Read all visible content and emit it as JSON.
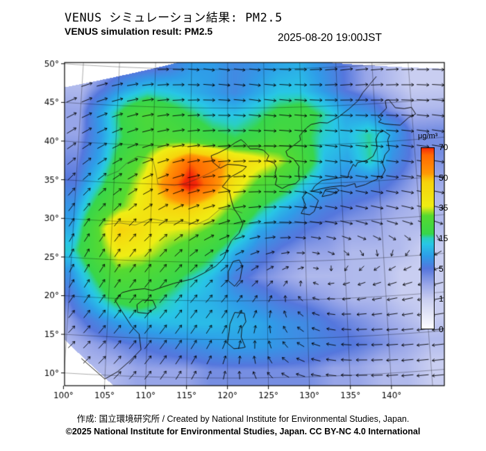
{
  "header": {
    "title_jp": "VENUS シミュレーション結果: PM2.5",
    "title_en": "VENUS simulation result: PM2.5",
    "timestamp": "2025-08-20 19:00JST"
  },
  "colorbar": {
    "unit": "μg/m³",
    "ticks": [
      "70",
      "50",
      "35",
      "15",
      "5",
      "1",
      "0"
    ]
  },
  "footer": {
    "credit": "作成: 国立環境研究所 / Created by National Institute for Environmental Studies, Japan.",
    "copyright": "©2025 National Institute for Environmental Studies, Japan. CC BY-NC 4.0 International"
  },
  "chart_data": {
    "type": "heatmap",
    "title": "VENUS simulation result: PM2.5",
    "units": "μg/m³",
    "projection": "lambert-conformal-approx",
    "lon_range": [
      100,
      145
    ],
    "lat_range": [
      10,
      50
    ],
    "lon_ticks": [
      "100°",
      "105°",
      "110°",
      "115°",
      "120°",
      "125°",
      "130°",
      "135°",
      "140°"
    ],
    "lon_tick_values": [
      100,
      105,
      110,
      115,
      120,
      125,
      130,
      135,
      140
    ],
    "lat_ticks": [
      "50°",
      "45°",
      "40°",
      "35°",
      "30°",
      "25°",
      "20°",
      "15°",
      "10°"
    ],
    "lat_tick_values": [
      50,
      45,
      40,
      35,
      30,
      25,
      20,
      15,
      10
    ],
    "colorbar_values": [
      0,
      1,
      5,
      15,
      35,
      50,
      70
    ],
    "color_stops": [
      [
        0,
        "#ffffff"
      ],
      [
        1,
        "#c9cef1"
      ],
      [
        3,
        "#97a5e8"
      ],
      [
        5,
        "#5577dd"
      ],
      [
        9,
        "#2f9ce8"
      ],
      [
        13,
        "#28c6e6"
      ],
      [
        15,
        "#29cfc4"
      ],
      [
        18,
        "#38d64a"
      ],
      [
        30,
        "#56da31"
      ],
      [
        33,
        "#a5e321"
      ],
      [
        36,
        "#efee14"
      ],
      [
        48,
        "#f7d30c"
      ],
      [
        53,
        "#ff9806"
      ],
      [
        65,
        "#ff6a02"
      ],
      [
        70,
        "#f52808"
      ],
      [
        85,
        "#cc0000"
      ]
    ],
    "domain_polygon": [
      [
        97.0,
        46.8
      ],
      [
        119,
        52.3
      ],
      [
        153,
        48.5
      ],
      [
        147,
        5.5
      ],
      [
        108,
        7
      ],
      [
        97.3,
        16.5
      ]
    ],
    "grid": {
      "lon_start": 100,
      "lon_step": 3,
      "lat_start": 50,
      "lat_step": -3,
      "values": [
        [
          2,
          2,
          3,
          4,
          6,
          9,
          9,
          7,
          8,
          10,
          11,
          8,
          5,
          3,
          2,
          1
        ],
        [
          2,
          5,
          10,
          14,
          13,
          11,
          9,
          7,
          10,
          13,
          13,
          9,
          5,
          3,
          2,
          1
        ],
        [
          3,
          10,
          20,
          26,
          22,
          18,
          14,
          13,
          16,
          20,
          22,
          16,
          10,
          8,
          4,
          2
        ],
        [
          3,
          9,
          18,
          24,
          26,
          24,
          20,
          18,
          20,
          24,
          20,
          14,
          12,
          16,
          10,
          4
        ],
        [
          4,
          10,
          22,
          32,
          48,
          65,
          58,
          46,
          40,
          34,
          24,
          12,
          10,
          16,
          8,
          4
        ],
        [
          5,
          14,
          26,
          38,
          58,
          75,
          60,
          40,
          28,
          22,
          14,
          9,
          7,
          7,
          5,
          3
        ],
        [
          8,
          20,
          30,
          40,
          46,
          48,
          40,
          28,
          18,
          12,
          8,
          6,
          5,
          4,
          3,
          2
        ],
        [
          10,
          28,
          48,
          42,
          36,
          34,
          28,
          18,
          10,
          7,
          5,
          4,
          3,
          3,
          2,
          2
        ],
        [
          14,
          26,
          38,
          36,
          30,
          24,
          18,
          10,
          6,
          4,
          3,
          3,
          2,
          2,
          2,
          1
        ],
        [
          8,
          18,
          28,
          26,
          22,
          16,
          12,
          6,
          4,
          3,
          2,
          2,
          2,
          2,
          1,
          1
        ],
        [
          5,
          12,
          20,
          22,
          16,
          12,
          11,
          9,
          7,
          5,
          4,
          3,
          2,
          2,
          1,
          1
        ],
        [
          3,
          6,
          9,
          11,
          12,
          12,
          12,
          11,
          10,
          8,
          7,
          5,
          4,
          3,
          2,
          1
        ],
        [
          2,
          3,
          4,
          5,
          6,
          7,
          8,
          9,
          9,
          8,
          7,
          6,
          5,
          4,
          3,
          2
        ],
        [
          1,
          2,
          2,
          3,
          3,
          3,
          4,
          4,
          4,
          4,
          4,
          3,
          3,
          2,
          2,
          1
        ]
      ]
    },
    "wind": {
      "lon_start": 100,
      "lon_step": 6,
      "lat_start": 50,
      "lat_step": -5,
      "u": [
        [
          2.0,
          2.0,
          2.0,
          2.0,
          2.0,
          2.2,
          2.4,
          2.4,
          2.2
        ],
        [
          1.8,
          2.0,
          2.2,
          2.2,
          2.2,
          2.4,
          2.6,
          2.6,
          2.4
        ],
        [
          1.5,
          1.8,
          2.2,
          2.5,
          2.5,
          2.6,
          2.8,
          2.8,
          2.6
        ],
        [
          1.2,
          1.5,
          2.0,
          2.5,
          2.8,
          2.8,
          2.8,
          2.8,
          2.6
        ],
        [
          0.8,
          1.0,
          1.5,
          2.0,
          2.2,
          2.4,
          2.4,
          2.2,
          2.0
        ],
        [
          0.6,
          0.8,
          1.0,
          1.2,
          1.0,
          0.5,
          0.0,
          -0.5,
          -1.0
        ],
        [
          0.8,
          1.0,
          1.2,
          1.0,
          0.5,
          -0.5,
          -1.2,
          -1.8,
          -2.0
        ],
        [
          1.0,
          1.2,
          1.2,
          0.8,
          0.0,
          -1.0,
          -1.8,
          -2.2,
          -2.2
        ],
        [
          1.0,
          1.2,
          1.0,
          0.5,
          -0.5,
          -1.5,
          -2.0,
          -2.2,
          -2.2
        ]
      ],
      "v": [
        [
          0.5,
          0.3,
          0.0,
          -0.3,
          -0.2,
          0.0,
          0.3,
          0.2,
          0.0
        ],
        [
          0.8,
          0.5,
          0.2,
          0.0,
          -0.3,
          -0.2,
          0.0,
          0.0,
          -0.2
        ],
        [
          1.0,
          0.8,
          0.5,
          0.2,
          0.0,
          -0.2,
          -0.3,
          -0.3,
          -0.4
        ],
        [
          1.2,
          1.0,
          0.8,
          0.4,
          0.0,
          -0.3,
          -0.5,
          -0.4,
          -0.4
        ],
        [
          1.2,
          1.2,
          1.0,
          0.8,
          0.3,
          -0.3,
          -0.6,
          -0.6,
          -0.5
        ],
        [
          1.2,
          1.2,
          1.2,
          1.0,
          0.5,
          0.0,
          -0.4,
          -0.5,
          -0.5
        ],
        [
          1.2,
          1.4,
          1.4,
          1.2,
          0.8,
          0.3,
          -0.2,
          -0.4,
          -0.4
        ],
        [
          1.0,
          1.4,
          1.6,
          1.4,
          1.0,
          0.5,
          0.0,
          -0.2,
          -0.3
        ],
        [
          0.8,
          1.2,
          1.4,
          1.2,
          0.8,
          0.3,
          0.0,
          -0.2,
          -0.2
        ]
      ]
    },
    "coastlines": [
      [
        [
          102,
          12
        ],
        [
          105,
          9.5
        ],
        [
          106.5,
          10.5
        ],
        [
          108,
          12
        ],
        [
          109.3,
          13.5
        ],
        [
          109,
          15.5
        ],
        [
          108,
          16.5
        ],
        [
          106.5,
          18.7
        ],
        [
          105.8,
          19.8
        ],
        [
          106.7,
          20.8
        ],
        [
          108,
          21.2
        ],
        [
          109.5,
          21.4
        ],
        [
          110.5,
          21.2
        ],
        [
          111.8,
          21.7
        ],
        [
          113.2,
          22.2
        ],
        [
          114.3,
          22.5
        ],
        [
          115.5,
          22.8
        ],
        [
          117,
          23.6
        ],
        [
          118.5,
          24.5
        ],
        [
          119.5,
          25.5
        ],
        [
          120,
          26.8
        ],
        [
          120.5,
          27.8
        ],
        [
          121.5,
          28.8
        ],
        [
          122,
          30
        ],
        [
          121.5,
          31
        ],
        [
          120.8,
          32
        ],
        [
          120.5,
          33
        ],
        [
          120.2,
          34.3
        ],
        [
          119.3,
          34.8
        ],
        [
          120.3,
          36
        ],
        [
          122,
          36.9
        ],
        [
          122.5,
          37.4
        ],
        [
          121.5,
          37.6
        ],
        [
          120,
          37.7
        ],
        [
          119,
          37.2
        ],
        [
          118,
          38
        ],
        [
          117.8,
          38.8
        ],
        [
          118.8,
          39.2
        ],
        [
          120,
          39.8
        ],
        [
          121,
          40.5
        ],
        [
          121.8,
          40.9
        ],
        [
          122.3,
          40.5
        ],
        [
          123,
          39.7
        ],
        [
          124,
          39.7
        ],
        [
          124.8,
          39.5
        ],
        [
          125.5,
          38.8
        ],
        [
          125.2,
          38.2
        ],
        [
          126.2,
          37.8
        ],
        [
          126.5,
          37.2
        ],
        [
          126.3,
          36.5
        ],
        [
          126.5,
          35.8
        ],
        [
          126.3,
          35
        ],
        [
          127.2,
          34.5
        ],
        [
          128,
          34.9
        ],
        [
          129,
          35.1
        ],
        [
          129.5,
          35.6
        ],
        [
          129.4,
          36.5
        ],
        [
          129.5,
          37.3
        ],
        [
          128.8,
          38.3
        ],
        [
          128,
          38.7
        ],
        [
          127.8,
          39.3
        ],
        [
          128.5,
          39.8
        ],
        [
          129.8,
          40.7
        ],
        [
          129.7,
          41.3
        ],
        [
          130.7,
          42.3
        ],
        [
          131.3,
          42.7
        ],
        [
          132.5,
          42.9
        ],
        [
          133.5,
          42.8
        ],
        [
          135,
          43.5
        ],
        [
          136.5,
          44.5
        ],
        [
          137.8,
          45.5
        ],
        [
          138.5,
          46.5
        ],
        [
          139.5,
          47.5
        ],
        [
          140.5,
          48.5
        ]
      ],
      [
        [
          108.7,
          18.3
        ],
        [
          110,
          18.2
        ],
        [
          111,
          19
        ],
        [
          110.6,
          19.9
        ],
        [
          109.3,
          19.9
        ],
        [
          108.6,
          19.3
        ],
        [
          108.7,
          18.3
        ]
      ],
      [
        [
          120.1,
          22.6
        ],
        [
          120.9,
          21.9
        ],
        [
          121.6,
          22.8
        ],
        [
          121.9,
          24.5
        ],
        [
          121.5,
          25.3
        ],
        [
          120.7,
          25.1
        ],
        [
          120.1,
          23.8
        ],
        [
          120.1,
          22.6
        ]
      ],
      [
        [
          129.6,
          31.2
        ],
        [
          130.7,
          31
        ],
        [
          131.3,
          31.4
        ],
        [
          131.9,
          32.8
        ],
        [
          131,
          33.6
        ],
        [
          130.4,
          33.9
        ],
        [
          129.8,
          33.3
        ],
        [
          130.2,
          32.3
        ],
        [
          129.6,
          31.2
        ]
      ],
      [
        [
          132.4,
          33.3
        ],
        [
          133.6,
          33.5
        ],
        [
          134.7,
          34
        ],
        [
          134.3,
          34.3
        ],
        [
          132.9,
          34.2
        ],
        [
          132.4,
          33.3
        ]
      ],
      [
        [
          131,
          34
        ],
        [
          132.2,
          34.3
        ],
        [
          133.5,
          34.5
        ],
        [
          135,
          34.6
        ],
        [
          135.5,
          34.5
        ],
        [
          136.8,
          34.8
        ],
        [
          136.9,
          34.3
        ],
        [
          138.2,
          34.6
        ],
        [
          138.9,
          34.9
        ],
        [
          139.8,
          35.2
        ],
        [
          139.8,
          35.6
        ],
        [
          140.4,
          35.5
        ],
        [
          140.9,
          36.3
        ],
        [
          140.6,
          37.2
        ],
        [
          141,
          38.3
        ],
        [
          141.6,
          38.9
        ],
        [
          141.5,
          40.2
        ],
        [
          141.8,
          40.8
        ],
        [
          140.9,
          41.5
        ],
        [
          140.3,
          41.1
        ],
        [
          139.9,
          40.4
        ],
        [
          140,
          39.3
        ],
        [
          139.4,
          38.2
        ],
        [
          138.5,
          37.7
        ],
        [
          137.3,
          37.5
        ],
        [
          137,
          37
        ],
        [
          136.7,
          37.3
        ],
        [
          136.1,
          36.3
        ],
        [
          135.9,
          35.6
        ],
        [
          135.2,
          35.7
        ],
        [
          133.5,
          35.5
        ],
        [
          132.5,
          35.4
        ],
        [
          131.5,
          34.7
        ],
        [
          131,
          34
        ]
      ],
      [
        [
          140.4,
          42.6
        ],
        [
          141.2,
          42.3
        ],
        [
          142.5,
          42.1
        ],
        [
          143.3,
          42
        ],
        [
          144.5,
          42.9
        ],
        [
          145.5,
          43.3
        ],
        [
          145,
          44.2
        ],
        [
          144,
          44.1
        ],
        [
          142.8,
          44.3
        ],
        [
          142,
          45.4
        ],
        [
          141.5,
          45.3
        ],
        [
          141.6,
          44.3
        ],
        [
          140.4,
          43.3
        ],
        [
          140.8,
          42.9
        ],
        [
          140.4,
          42.6
        ]
      ],
      [
        [
          120,
          14.5
        ],
        [
          120.8,
          13.8
        ],
        [
          121.8,
          13.9
        ],
        [
          122.2,
          14
        ],
        [
          121.7,
          15.3
        ],
        [
          121.8,
          16.5
        ],
        [
          122.3,
          17.3
        ],
        [
          122.1,
          18.4
        ],
        [
          120.9,
          18.5
        ],
        [
          120.3,
          17
        ],
        [
          120.2,
          16
        ],
        [
          120,
          14.5
        ]
      ]
    ],
    "rivers": [
      [
        [
          104,
          29.5
        ],
        [
          106,
          29.8
        ],
        [
          108,
          29.6
        ],
        [
          110,
          30.5
        ],
        [
          112,
          30.2
        ],
        [
          114,
          30.3
        ],
        [
          116,
          29.9
        ],
        [
          117.5,
          30.6
        ],
        [
          119,
          31.9
        ],
        [
          120.5,
          31.9
        ],
        [
          121.9,
          31.4
        ]
      ],
      [
        [
          104,
          35.8
        ],
        [
          105.5,
          36.5
        ],
        [
          106.5,
          37.5
        ],
        [
          108,
          38.5
        ],
        [
          110,
          38.3
        ],
        [
          110.5,
          36.5
        ],
        [
          110.8,
          35
        ],
        [
          113,
          34.9
        ],
        [
          114.5,
          35.2
        ],
        [
          116,
          35.8
        ],
        [
          117.5,
          36.5
        ],
        [
          118.8,
          37.2
        ],
        [
          119,
          37.8
        ]
      ]
    ]
  }
}
